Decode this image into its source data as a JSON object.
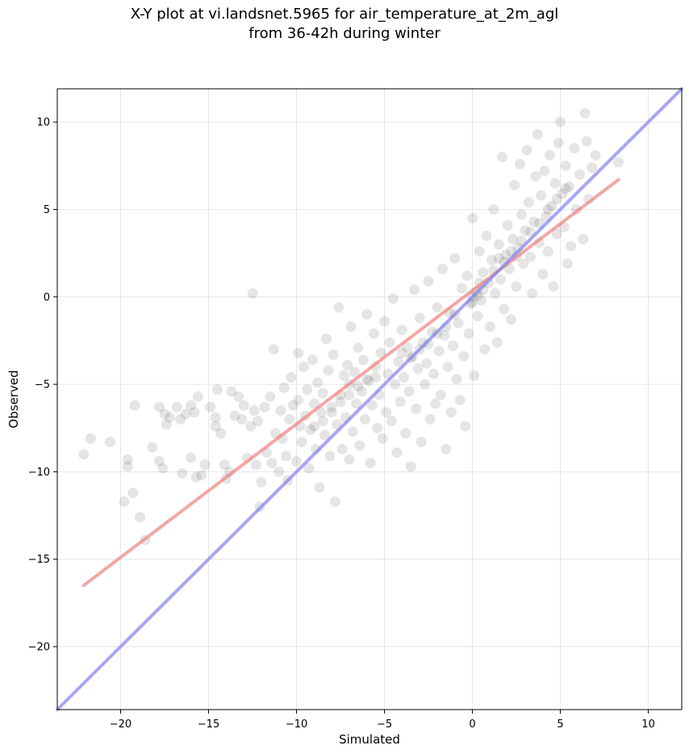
{
  "title": {
    "line1": "X-Y plot at vi.landsnet.5965 for air_temperature_at_2m_agl",
    "line2": "from 36-42h during winter"
  },
  "colors": {
    "points": "#000000",
    "regression_line": "#f08080",
    "one_to_one_line": "#8080f0",
    "grid": "#e6e6e6"
  },
  "chart_data": {
    "type": "scatter",
    "title": "X-Y plot at vi.landsnet.5965 for air_temperature_at_2m_agl from 36-42h during winter",
    "xlabel": "Simulated",
    "ylabel": "Observed",
    "xlim": [
      -23.6,
      11.9
    ],
    "ylim": [
      -23.6,
      11.9
    ],
    "xticks": [
      -20,
      -15,
      -10,
      -5,
      0,
      5,
      10
    ],
    "yticks": [
      -20,
      -15,
      -10,
      -5,
      0,
      5,
      10
    ],
    "xtick_labels": [
      "−20",
      "−15",
      "−10",
      "−5",
      "0",
      "5",
      "10"
    ],
    "ytick_labels": [
      "−20",
      "−15",
      "−10",
      "−5",
      "0",
      "5",
      "10"
    ],
    "grid": true,
    "lines": [
      {
        "kind": "regression",
        "x": [
          -22.1,
          8.3
        ],
        "y": [
          -16.5,
          6.7
        ]
      },
      {
        "kind": "one-to-one",
        "x": [
          -23.6,
          11.9
        ],
        "y": [
          -23.6,
          11.9
        ]
      }
    ],
    "series": [
      {
        "points": [
          [
            -22.1,
            -9.0
          ],
          [
            -21.7,
            -8.1
          ],
          [
            -20.6,
            -8.3
          ],
          [
            -19.8,
            -11.7
          ],
          [
            -19.6,
            -9.3
          ],
          [
            -19.6,
            -9.7
          ],
          [
            -19.3,
            -11.2
          ],
          [
            -19.2,
            -6.2
          ],
          [
            -18.9,
            -12.6
          ],
          [
            -18.6,
            -13.9
          ],
          [
            -18.2,
            -8.6
          ],
          [
            -17.8,
            -9.4
          ],
          [
            -17.8,
            -6.3
          ],
          [
            -17.6,
            -9.8
          ],
          [
            -17.5,
            -6.7
          ],
          [
            -17.4,
            -7.3
          ],
          [
            -17.2,
            -6.9
          ],
          [
            -16.8,
            -6.3
          ],
          [
            -16.6,
            -7.0
          ],
          [
            -16.5,
            -10.1
          ],
          [
            -16.3,
            -6.7
          ],
          [
            -16.0,
            -9.2
          ],
          [
            -16.0,
            -6.2
          ],
          [
            -15.8,
            -6.6
          ],
          [
            -15.7,
            -10.3
          ],
          [
            -15.6,
            -5.7
          ],
          [
            -15.4,
            -10.2
          ],
          [
            -15.2,
            -9.6
          ],
          [
            -14.9,
            -6.3
          ],
          [
            -14.6,
            -6.9
          ],
          [
            -14.6,
            -7.4
          ],
          [
            -14.5,
            -5.3
          ],
          [
            -14.3,
            -7.8
          ],
          [
            -14.1,
            -9.6
          ],
          [
            -14.0,
            -10.4
          ],
          [
            -13.8,
            -10.0
          ],
          [
            -13.7,
            -5.4
          ],
          [
            -13.5,
            -6.8
          ],
          [
            -13.3,
            -5.7
          ],
          [
            -13.1,
            -7.0
          ],
          [
            -13.0,
            -6.2
          ],
          [
            -12.8,
            -9.2
          ],
          [
            -12.6,
            -7.4
          ],
          [
            -12.5,
            0.2
          ],
          [
            -12.4,
            -6.5
          ],
          [
            -12.3,
            -9.6
          ],
          [
            -12.2,
            -7.1
          ],
          [
            -12.1,
            -12.0
          ],
          [
            -12.0,
            -10.6
          ],
          [
            -11.8,
            -6.3
          ],
          [
            -11.7,
            -8.9
          ],
          [
            -11.5,
            -5.7
          ],
          [
            -11.4,
            -9.5
          ],
          [
            -11.3,
            -3.0
          ],
          [
            -11.2,
            -7.8
          ],
          [
            -11.0,
            -10.0
          ],
          [
            -10.9,
            -6.5
          ],
          [
            -10.8,
            -8.1
          ],
          [
            -10.7,
            -5.2
          ],
          [
            -10.6,
            -9.1
          ],
          [
            -10.5,
            -10.5
          ],
          [
            -10.4,
            -7.0
          ],
          [
            -10.3,
            -4.6
          ],
          [
            -10.2,
            -6.2
          ],
          [
            -10.0,
            -9.4
          ],
          [
            -9.9,
            -3.2
          ],
          [
            -9.9,
            -5.9
          ],
          [
            -9.8,
            -7.4
          ],
          [
            -9.7,
            -8.3
          ],
          [
            -9.6,
            -4.0
          ],
          [
            -9.5,
            -6.8
          ],
          [
            -9.4,
            -5.3
          ],
          [
            -9.3,
            -9.8
          ],
          [
            -9.2,
            -7.6
          ],
          [
            -9.1,
            -3.6
          ],
          [
            -9.0,
            -6.1
          ],
          [
            -8.9,
            -8.7
          ],
          [
            -8.8,
            -4.9
          ],
          [
            -8.7,
            -10.9
          ],
          [
            -8.6,
            -6.6
          ],
          [
            -8.5,
            -5.5
          ],
          [
            -8.4,
            -7.9
          ],
          [
            -8.3,
            -2.4
          ],
          [
            -8.2,
            -4.2
          ],
          [
            -8.1,
            -9.1
          ],
          [
            -8.0,
            -6.3
          ],
          [
            -7.9,
            -3.3
          ],
          [
            -7.8,
            -11.7
          ],
          [
            -7.7,
            -7.3
          ],
          [
            -7.6,
            -0.6
          ],
          [
            -7.5,
            -5.6
          ],
          [
            -7.4,
            -8.7
          ],
          [
            -7.3,
            -4.5
          ],
          [
            -7.2,
            -6.9
          ],
          [
            -7.1,
            -3.9
          ],
          [
            -7.0,
            -9.3
          ],
          [
            -7.0,
            -5.0
          ],
          [
            -6.9,
            -1.7
          ],
          [
            -6.8,
            -7.7
          ],
          [
            -6.7,
            -4.3
          ],
          [
            -6.6,
            -6.1
          ],
          [
            -6.5,
            -2.9
          ],
          [
            -6.4,
            -8.5
          ],
          [
            -6.3,
            -5.4
          ],
          [
            -6.2,
            -3.6
          ],
          [
            -6.1,
            -7.0
          ],
          [
            -6.0,
            -1.0
          ],
          [
            -5.9,
            -4.8
          ],
          [
            -5.8,
            -9.5
          ],
          [
            -5.7,
            -6.2
          ],
          [
            -5.6,
            -2.1
          ],
          [
            -5.5,
            -4.0
          ],
          [
            -5.4,
            -7.5
          ],
          [
            -5.3,
            -5.6
          ],
          [
            -5.2,
            -3.2
          ],
          [
            -5.1,
            -8.1
          ],
          [
            -5.0,
            -1.4
          ],
          [
            -4.9,
            -6.6
          ],
          [
            -4.8,
            -4.4
          ],
          [
            -4.7,
            -2.6
          ],
          [
            -4.6,
            -7.1
          ],
          [
            -4.5,
            -0.1
          ],
          [
            -4.4,
            -5.0
          ],
          [
            -4.3,
            -8.9
          ],
          [
            -4.2,
            -3.7
          ],
          [
            -4.1,
            -6.0
          ],
          [
            -4.0,
            -1.9
          ],
          [
            -3.9,
            -4.6
          ],
          [
            -3.8,
            -7.8
          ],
          [
            -3.7,
            -2.9
          ],
          [
            -3.6,
            -5.4
          ],
          [
            -3.5,
            -9.7
          ],
          [
            -3.4,
            -3.4
          ],
          [
            -3.3,
            0.4
          ],
          [
            -3.2,
            -6.4
          ],
          [
            -3.1,
            -4.1
          ],
          [
            -3.0,
            -1.2
          ],
          [
            -2.9,
            -8.3
          ],
          [
            -2.8,
            -2.6
          ],
          [
            -2.7,
            -5.0
          ],
          [
            -2.6,
            -3.8
          ],
          [
            -2.5,
            0.9
          ],
          [
            -2.4,
            -7.0
          ],
          [
            -2.3,
            -2.0
          ],
          [
            -2.2,
            -4.4
          ],
          [
            -2.1,
            -6.1
          ],
          [
            -2.0,
            -0.6
          ],
          [
            -1.9,
            -3.1
          ],
          [
            -1.8,
            -5.6
          ],
          [
            -1.7,
            1.6
          ],
          [
            -1.6,
            -2.2
          ],
          [
            -1.5,
            -8.7
          ],
          [
            -1.4,
            -4.0
          ],
          [
            -1.3,
            -0.9
          ],
          [
            -1.2,
            -6.6
          ],
          [
            -1.1,
            -2.8
          ],
          [
            -1.0,
            2.2
          ],
          [
            -0.9,
            -4.7
          ],
          [
            -0.8,
            -1.5
          ],
          [
            -0.7,
            -5.9
          ],
          [
            -0.6,
            0.5
          ],
          [
            -0.5,
            -3.4
          ],
          [
            -0.4,
            -7.4
          ],
          [
            -0.3,
            1.2
          ],
          [
            -0.2,
            -2.1
          ],
          [
            -0.1,
            -0.4
          ],
          [
            0.0,
            4.5
          ],
          [
            0.0,
            0.0
          ],
          [
            0.1,
            -4.5
          ],
          [
            0.2,
            0.3
          ],
          [
            0.3,
            -1.1
          ],
          [
            0.4,
            2.6
          ],
          [
            0.5,
            -0.2
          ],
          [
            0.6,
            1.4
          ],
          [
            0.7,
            -3.0
          ],
          [
            0.8,
            3.5
          ],
          [
            0.9,
            0.8
          ],
          [
            1.0,
            -1.7
          ],
          [
            1.1,
            2.1
          ],
          [
            1.2,
            5.0
          ],
          [
            1.3,
            0.2
          ],
          [
            1.4,
            -2.6
          ],
          [
            1.5,
            3.0
          ],
          [
            1.6,
            1.0
          ],
          [
            1.7,
            8.0
          ],
          [
            1.8,
            -0.7
          ],
          [
            1.9,
            2.4
          ],
          [
            2.0,
            4.1
          ],
          [
            2.1,
            1.6
          ],
          [
            2.2,
            -1.3
          ],
          [
            2.3,
            3.3
          ],
          [
            2.4,
            6.4
          ],
          [
            2.5,
            0.6
          ],
          [
            2.6,
            2.8
          ],
          [
            2.7,
            7.6
          ],
          [
            2.8,
            4.7
          ],
          [
            2.9,
            1.9
          ],
          [
            3.0,
            3.8
          ],
          [
            3.1,
            8.4
          ],
          [
            3.2,
            5.4
          ],
          [
            3.3,
            2.3
          ],
          [
            3.4,
            0.2
          ],
          [
            3.5,
            4.3
          ],
          [
            3.6,
            6.9
          ],
          [
            3.7,
            9.3
          ],
          [
            3.8,
            3.1
          ],
          [
            3.9,
            5.8
          ],
          [
            4.0,
            1.3
          ],
          [
            4.1,
            7.2
          ],
          [
            4.2,
            4.6
          ],
          [
            4.3,
            2.6
          ],
          [
            4.4,
            8.1
          ],
          [
            4.5,
            5.2
          ],
          [
            4.6,
            0.6
          ],
          [
            4.7,
            6.5
          ],
          [
            4.8,
            3.6
          ],
          [
            4.9,
            8.8
          ],
          [
            5.0,
            10.0
          ],
          [
            5.1,
            5.9
          ],
          [
            5.2,
            4.0
          ],
          [
            5.3,
            7.5
          ],
          [
            5.4,
            1.9
          ],
          [
            5.5,
            6.3
          ],
          [
            5.6,
            2.9
          ],
          [
            5.8,
            8.5
          ],
          [
            5.9,
            5.0
          ],
          [
            6.1,
            7.0
          ],
          [
            6.3,
            3.3
          ],
          [
            6.4,
            10.5
          ],
          [
            6.5,
            8.9
          ],
          [
            6.6,
            5.6
          ],
          [
            6.8,
            7.4
          ],
          [
            7.0,
            8.1
          ],
          [
            8.3,
            7.7
          ],
          [
            -3.0,
            -3.0
          ],
          [
            -3.5,
            -3.5
          ],
          [
            -4.0,
            -3.2
          ],
          [
            -2.5,
            -2.7
          ],
          [
            -6.5,
            -5.1
          ],
          [
            -7.0,
            -5.6
          ],
          [
            -7.5,
            -6.0
          ],
          [
            -6.0,
            -4.7
          ],
          [
            -5.5,
            -4.6
          ],
          [
            -8.0,
            -6.6
          ],
          [
            -8.5,
            -7.1
          ],
          [
            -9.0,
            -7.4
          ],
          [
            0.3,
            0.1
          ],
          [
            0.6,
            0.4
          ],
          [
            1.2,
            1.5
          ],
          [
            1.8,
            2.0
          ],
          [
            2.2,
            2.6
          ],
          [
            2.8,
            3.2
          ],
          [
            3.3,
            3.7
          ],
          [
            3.8,
            4.2
          ],
          [
            4.3,
            5.0
          ],
          [
            4.8,
            5.6
          ],
          [
            5.3,
            6.2
          ],
          [
            -1.0,
            -1.0
          ],
          [
            -1.5,
            -1.7
          ],
          [
            -2.0,
            -2.1
          ],
          [
            0.0,
            -0.3
          ],
          [
            0.4,
            0.8
          ],
          [
            1.5,
            2.2
          ],
          [
            2.5,
            2.3
          ]
        ]
      }
    ]
  }
}
